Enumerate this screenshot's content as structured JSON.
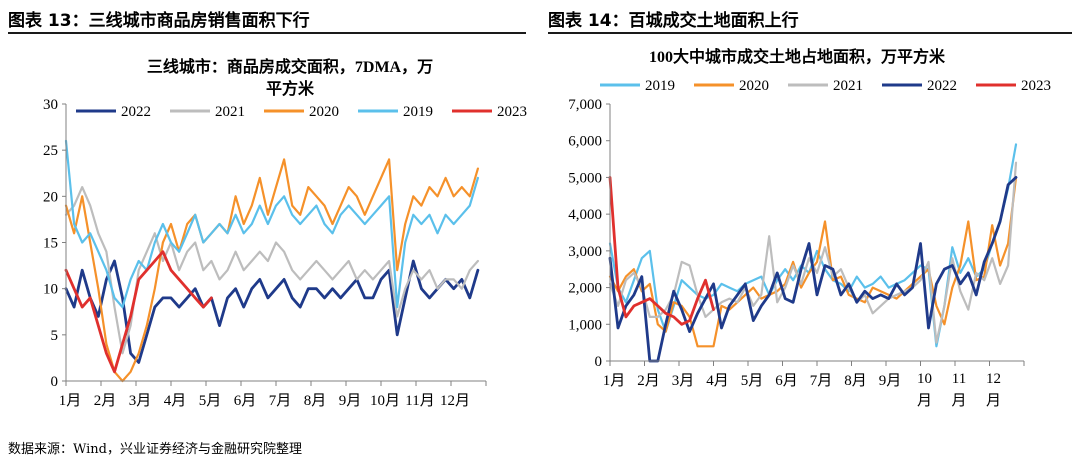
{
  "figures": {
    "left": {
      "title": "图表 13：三线城市商品房销售面积下行"
    },
    "right": {
      "title": "图表 14：百城成交土地面积上行"
    }
  },
  "source": "数据来源：Wind，兴业证券经济与金融研究院整理",
  "chart_data": [
    {
      "type": "line",
      "title": "三线城市：商品房成交面积，7DMA，万平方米",
      "title_lines": [
        "三线城市：商品房成交面积，7DMA，万",
        "平方米"
      ],
      "xlabel": "",
      "ylabel": "",
      "x_unit": "week_of_year",
      "x_range": [
        1,
        53
      ],
      "ylim": [
        0,
        30
      ],
      "yticks": [
        0,
        5,
        10,
        15,
        20,
        25,
        30
      ],
      "xtick_labels": [
        "1月",
        "2月",
        "3月",
        "4月",
        "5月",
        "6月",
        "7月",
        "8月",
        "9月",
        "10月",
        "11月",
        "12月"
      ],
      "grid": false,
      "legend_position": "top",
      "series": [
        {
          "name": "2022",
          "color": "#1f3a8a",
          "width": 2.8,
          "x": [
            1,
            2,
            3,
            4,
            5,
            6,
            7,
            8,
            9,
            10,
            11,
            12,
            13,
            14,
            15,
            16,
            17,
            18,
            19,
            20,
            21,
            22,
            23,
            24,
            25,
            26,
            27,
            28,
            29,
            30,
            31,
            32,
            33,
            34,
            35,
            36,
            37,
            38,
            39,
            40,
            41,
            42,
            43,
            44,
            45,
            46,
            47,
            48,
            49,
            50,
            51,
            52
          ],
          "values": [
            10,
            8,
            12,
            9,
            7,
            11,
            13,
            9,
            3,
            2,
            5,
            8,
            9,
            9,
            8,
            9,
            10,
            8,
            9,
            6,
            9,
            10,
            8,
            10,
            11,
            9,
            10,
            11,
            9,
            8,
            10,
            10,
            9,
            10,
            9,
            10,
            11,
            9,
            9,
            11,
            12,
            5,
            9,
            13,
            10,
            9,
            10,
            11,
            10,
            11,
            9,
            12
          ]
        },
        {
          "name": "2021",
          "color": "#bdbdbd",
          "width": 2.2,
          "x": [
            1,
            2,
            3,
            4,
            5,
            6,
            7,
            8,
            9,
            10,
            11,
            12,
            13,
            14,
            15,
            16,
            17,
            18,
            19,
            20,
            21,
            22,
            23,
            24,
            25,
            26,
            27,
            28,
            29,
            30,
            31,
            32,
            33,
            34,
            35,
            36,
            37,
            38,
            39,
            40,
            41,
            42,
            43,
            44,
            45,
            46,
            47,
            48,
            49,
            50,
            51,
            52
          ],
          "values": [
            18,
            19,
            21,
            19,
            16,
            14,
            8,
            3,
            6,
            12,
            14,
            16,
            13,
            15,
            12,
            14,
            15,
            12,
            13,
            11,
            12,
            14,
            12,
            13,
            14,
            13,
            15,
            14,
            12,
            11,
            12,
            13,
            12,
            11,
            12,
            13,
            11,
            12,
            11,
            12,
            13,
            7,
            10,
            12,
            11,
            12,
            10,
            11,
            11,
            10,
            12,
            13
          ]
        },
        {
          "name": "2020",
          "color": "#f5912a",
          "width": 2.2,
          "x": [
            1,
            2,
            3,
            4,
            5,
            6,
            7,
            8,
            9,
            10,
            11,
            12,
            13,
            14,
            15,
            16,
            17,
            18,
            19,
            20,
            21,
            22,
            23,
            24,
            25,
            26,
            27,
            28,
            29,
            30,
            31,
            32,
            33,
            34,
            35,
            36,
            37,
            38,
            39,
            40,
            41,
            42,
            43,
            44,
            45,
            46,
            47,
            48,
            49,
            50,
            51,
            52
          ],
          "values": [
            19,
            16,
            20,
            15,
            10,
            4,
            1,
            0,
            1,
            3,
            6,
            10,
            15,
            17,
            14,
            17,
            18,
            15,
            16,
            17,
            16,
            20,
            17,
            19,
            22,
            18,
            21,
            24,
            19,
            18,
            21,
            20,
            19,
            17,
            19,
            21,
            20,
            18,
            20,
            22,
            24,
            12,
            17,
            20,
            19,
            21,
            20,
            22,
            20,
            21,
            20,
            23
          ]
        },
        {
          "name": "2019",
          "color": "#5bc0eb",
          "width": 2.2,
          "x": [
            1,
            2,
            3,
            4,
            5,
            6,
            7,
            8,
            9,
            10,
            11,
            12,
            13,
            14,
            15,
            16,
            17,
            18,
            19,
            20,
            21,
            22,
            23,
            24,
            25,
            26,
            27,
            28,
            29,
            30,
            31,
            32,
            33,
            34,
            35,
            36,
            37,
            38,
            39,
            40,
            41,
            42,
            43,
            44,
            45,
            46,
            47,
            48,
            49,
            50,
            51,
            52
          ],
          "values": [
            26,
            17,
            15,
            16,
            14,
            12,
            9,
            8,
            11,
            13,
            12,
            15,
            17,
            15,
            14,
            16,
            18,
            15,
            16,
            17,
            16,
            18,
            16,
            17,
            19,
            17,
            19,
            20,
            18,
            17,
            18,
            19,
            17,
            16,
            18,
            19,
            18,
            17,
            18,
            19,
            20,
            8,
            15,
            18,
            17,
            18,
            16,
            18,
            17,
            18,
            19,
            22
          ]
        },
        {
          "name": "2023",
          "color": "#e0302d",
          "width": 2.8,
          "x": [
            1,
            2,
            3,
            4,
            5,
            6,
            7,
            8,
            9,
            10,
            11,
            12,
            13,
            14,
            15,
            16,
            17,
            18,
            19
          ],
          "values": [
            12,
            10,
            8,
            9,
            6,
            3,
            1,
            4,
            7,
            11,
            12,
            13,
            14,
            12,
            11,
            10,
            9,
            8,
            9
          ]
        }
      ]
    },
    {
      "type": "line",
      "title": "100大中城市成交土地占地面积，万平方米",
      "xlabel": "",
      "ylabel": "",
      "x_unit": "week_of_year",
      "x_range": [
        1,
        53
      ],
      "ylim": [
        0,
        7000
      ],
      "yticks": [
        0,
        1000,
        2000,
        3000,
        4000,
        5000,
        6000,
        7000
      ],
      "xtick_labels": [
        "1月",
        "2月",
        "3月",
        "4月",
        "5月",
        "6月",
        "7月",
        "8月",
        "9月",
        "10月",
        "11月",
        "12月"
      ],
      "grid": false,
      "legend_position": "top",
      "series": [
        {
          "name": "2019",
          "color": "#5bc0eb",
          "width": 2.2,
          "x": [
            1,
            2,
            3,
            4,
            5,
            6,
            7,
            8,
            9,
            10,
            11,
            12,
            13,
            14,
            15,
            16,
            17,
            18,
            19,
            20,
            21,
            22,
            23,
            24,
            25,
            26,
            27,
            28,
            29,
            30,
            31,
            32,
            33,
            34,
            35,
            36,
            37,
            38,
            39,
            40,
            41,
            42,
            43,
            44,
            45,
            46,
            47,
            48,
            49,
            50,
            51,
            52
          ],
          "values": [
            3200,
            2000,
            1600,
            2200,
            2800,
            3000,
            1400,
            800,
            1500,
            2200,
            2000,
            1800,
            1700,
            1800,
            2100,
            2000,
            1900,
            2100,
            2200,
            2300,
            1800,
            2200,
            2500,
            2200,
            2600,
            2400,
            3000,
            2500,
            2200,
            2100,
            1900,
            2300,
            2000,
            2100,
            2300,
            2000,
            2100,
            2200,
            2400,
            2600,
            2500,
            400,
            1500,
            3100,
            2400,
            2800,
            2300,
            2500,
            3200,
            3800,
            4700,
            5900
          ]
        },
        {
          "name": "2020",
          "color": "#f5912a",
          "width": 2.2,
          "x": [
            1,
            2,
            3,
            4,
            5,
            6,
            7,
            8,
            9,
            10,
            11,
            12,
            13,
            14,
            15,
            16,
            17,
            18,
            19,
            20,
            21,
            22,
            23,
            24,
            25,
            26,
            27,
            28,
            29,
            30,
            31,
            32,
            33,
            34,
            35,
            36,
            37,
            38,
            39,
            40,
            41,
            42,
            43,
            44,
            45,
            46,
            47,
            48,
            49,
            50,
            51,
            52
          ],
          "values": [
            2300,
            1900,
            2300,
            2500,
            1900,
            2100,
            1000,
            800,
            1600,
            1500,
            1200,
            400,
            400,
            400,
            1500,
            1400,
            1600,
            1800,
            2000,
            1700,
            1800,
            1900,
            2100,
            2700,
            2000,
            2400,
            2700,
            3800,
            2200,
            2300,
            1800,
            1700,
            1600,
            2000,
            1900,
            1800,
            1700,
            1900,
            2100,
            2300,
            2500,
            1500,
            1000,
            2000,
            2600,
            3800,
            2200,
            2300,
            3700,
            2600,
            3200,
            5000
          ]
        },
        {
          "name": "2021",
          "color": "#bdbdbd",
          "width": 2.2,
          "x": [
            1,
            2,
            3,
            4,
            5,
            6,
            7,
            8,
            9,
            10,
            11,
            12,
            13,
            14,
            15,
            16,
            17,
            18,
            19,
            20,
            21,
            22,
            23,
            24,
            25,
            26,
            27,
            28,
            29,
            30,
            31,
            32,
            33,
            34,
            35,
            36,
            37,
            38,
            39,
            40,
            41,
            42,
            43,
            44,
            45,
            46,
            47,
            48,
            49,
            50,
            51,
            52
          ],
          "values": [
            2100,
            1500,
            2200,
            2400,
            2000,
            1200,
            1200,
            1400,
            1800,
            2700,
            2600,
            1800,
            1200,
            1400,
            1600,
            1700,
            1600,
            2000,
            1500,
            1800,
            3400,
            1600,
            2000,
            2600,
            2100,
            2800,
            2400,
            3100,
            2300,
            2500,
            2000,
            1600,
            1800,
            1300,
            1500,
            1700,
            1800,
            1900,
            2000,
            2200,
            2700,
            500,
            1500,
            2800,
            1900,
            1400,
            2400,
            2200,
            2800,
            2100,
            2600,
            5400
          ]
        },
        {
          "name": "2022",
          "color": "#1f3a8a",
          "width": 2.8,
          "x": [
            1,
            2,
            3,
            4,
            5,
            6,
            7,
            8,
            9,
            10,
            11,
            12,
            13,
            14,
            15,
            16,
            17,
            18,
            19,
            20,
            21,
            22,
            23,
            24,
            25,
            26,
            27,
            28,
            29,
            30,
            31,
            32,
            33,
            34,
            35,
            36,
            37,
            38,
            39,
            40,
            41,
            42,
            43,
            44,
            45,
            46,
            47,
            48,
            49,
            50,
            51,
            52
          ],
          "values": [
            2800,
            900,
            1500,
            1800,
            2300,
            0,
            0,
            1000,
            1900,
            1400,
            800,
            1300,
            1700,
            2100,
            900,
            1500,
            1800,
            2100,
            1100,
            1500,
            1800,
            2400,
            1700,
            1600,
            2500,
            3200,
            1800,
            2600,
            2500,
            1800,
            2100,
            1600,
            1900,
            1700,
            1800,
            1700,
            2100,
            1800,
            2000,
            3200,
            900,
            2100,
            2500,
            2600,
            2100,
            2400,
            1800,
            2700,
            3200,
            3800,
            4800,
            5000
          ]
        },
        {
          "name": "2023",
          "color": "#e0302d",
          "width": 2.8,
          "x": [
            1,
            2,
            3,
            4,
            5,
            6,
            7,
            8,
            9,
            10,
            11,
            12,
            13,
            14
          ],
          "values": [
            5000,
            2000,
            1200,
            1500,
            1600,
            1700,
            1500,
            1300,
            1200,
            1000,
            1100,
            1700,
            2200,
            1400
          ]
        }
      ]
    }
  ]
}
